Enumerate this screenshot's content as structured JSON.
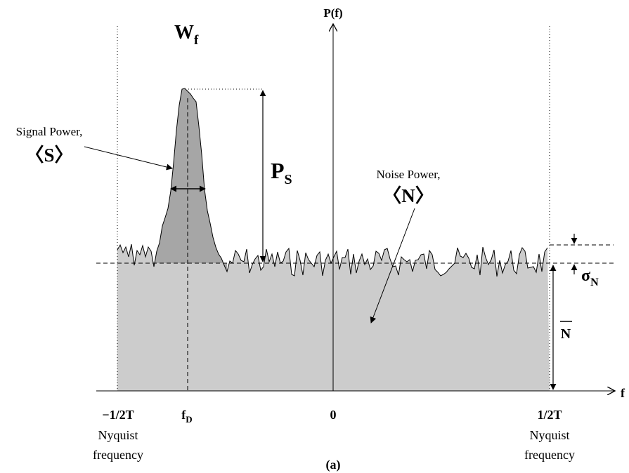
{
  "axes": {
    "y_label": "P(f)",
    "x_label": "f"
  },
  "ticks": {
    "left": "−1/2T",
    "fd_main": "f",
    "fd_sub": "D",
    "zero": "0",
    "right": "1/2T"
  },
  "nyquist": {
    "left_line1": "Nyquist",
    "left_line2": "frequency",
    "right_line1": "Nyquist",
    "right_line2": "frequency"
  },
  "signal": {
    "label_line1": "Signal Power,",
    "symbol": "〈S〉"
  },
  "noise": {
    "label_line1": "Noise Power,",
    "symbol": "〈N〉"
  },
  "width": {
    "main": "W",
    "sub": "f"
  },
  "peak": {
    "main": "P",
    "sub": "S"
  },
  "sigma": {
    "main": "σ",
    "sub": "N"
  },
  "mean_noise": "N",
  "caption": "(a)",
  "colors": {
    "noise_fill": "#cccccc",
    "signal_fill": "#a6a6a6",
    "ink": "#000000"
  }
}
